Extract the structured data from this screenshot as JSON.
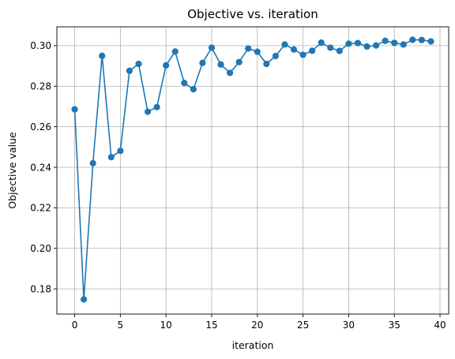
{
  "chart_data": {
    "type": "line",
    "title": "Objective vs. iteration",
    "xlabel": "iteration",
    "ylabel": "Objective value",
    "xlim": [
      -1.95,
      40.95
    ],
    "ylim": [
      0.1676,
      0.3093
    ],
    "xticks": [
      0,
      5,
      10,
      15,
      20,
      25,
      30,
      35,
      40
    ],
    "yticks": [
      0.18,
      0.2,
      0.22,
      0.24,
      0.26,
      0.28,
      0.3
    ],
    "ytick_labels": [
      "0.18",
      "0.20",
      "0.22",
      "0.24",
      "0.26",
      "0.28",
      "0.30"
    ],
    "grid": true,
    "color": "#1f77b4",
    "series": [
      {
        "x": [
          0,
          1,
          2,
          3,
          4,
          5,
          6,
          7,
          8,
          9,
          10,
          11,
          12,
          13,
          14,
          15,
          16,
          17,
          18,
          19,
          20,
          21,
          22,
          23,
          24,
          25,
          26,
          27,
          28,
          29,
          30,
          31,
          32,
          33,
          34,
          35,
          36,
          37,
          38,
          39
        ],
        "values": [
          0.2686,
          0.1748,
          0.242,
          0.295,
          0.245,
          0.2481,
          0.2876,
          0.291,
          0.2674,
          0.2697,
          0.2903,
          0.2971,
          0.2816,
          0.2785,
          0.2915,
          0.299,
          0.2907,
          0.2866,
          0.2919,
          0.2986,
          0.297,
          0.291,
          0.2949,
          0.3006,
          0.2981,
          0.2955,
          0.2975,
          0.3015,
          0.299,
          0.2974,
          0.301,
          0.3013,
          0.2996,
          0.3001,
          0.3024,
          0.3014,
          0.3006,
          0.3029,
          0.3028,
          0.3021
        ]
      }
    ]
  }
}
